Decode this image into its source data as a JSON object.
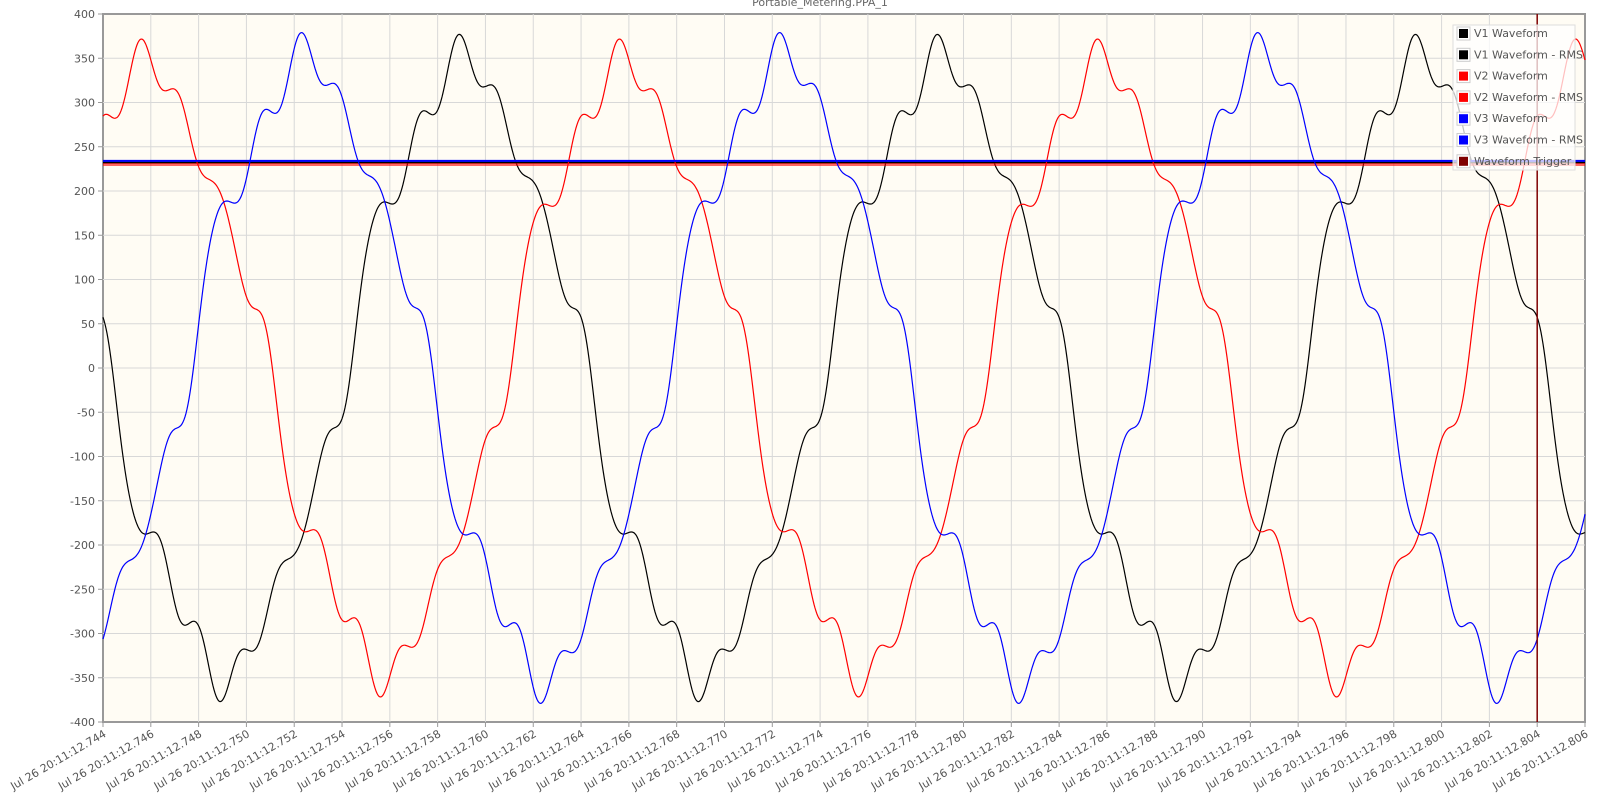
{
  "chart_data": {
    "type": "line",
    "title": "Portable_Metering.PPA_1",
    "xlabel": "",
    "ylabel": "",
    "ylim": [
      -400,
      400
    ],
    "yticks": [
      400,
      350,
      300,
      250,
      200,
      150,
      100,
      50,
      0,
      -50,
      -100,
      -150,
      -200,
      -250,
      -300,
      -350,
      -400
    ],
    "xticks": [
      "Jul 26 20:11:12.744",
      "Jul 26 20:11:12.746",
      "Jul 26 20:11:12.748",
      "Jul 26 20:11:12.750",
      "Jul 26 20:11:12.752",
      "Jul 26 20:11:12.754",
      "Jul 26 20:11:12.756",
      "Jul 26 20:11:12.758",
      "Jul 26 20:11:12.760",
      "Jul 26 20:11:12.762",
      "Jul 26 20:11:12.764",
      "Jul 26 20:11:12.766",
      "Jul 26 20:11:12.768",
      "Jul 26 20:11:12.770",
      "Jul 26 20:11:12.772",
      "Jul 26 20:11:12.774",
      "Jul 26 20:11:12.776",
      "Jul 26 20:11:12.778",
      "Jul 26 20:11:12.780",
      "Jul 26 20:11:12.782",
      "Jul 26 20:11:12.784",
      "Jul 26 20:11:12.786",
      "Jul 26 20:11:12.788",
      "Jul 26 20:11:12.790",
      "Jul 26 20:11:12.792",
      "Jul 26 20:11:12.794",
      "Jul 26 20:11:12.796",
      "Jul 26 20:11:12.798",
      "Jul 26 20:11:12.800",
      "Jul 26 20:11:12.802",
      "Jul 26 20:11:12.804",
      "Jul 26 20:11:12.806"
    ],
    "xlim_seconds": [
      12.744,
      12.806
    ],
    "grid": true,
    "legend_position": "top-right",
    "background": "#fffcf4",
    "series": [
      {
        "name": "V1 Waveform",
        "color": "#000000",
        "kind": "waveform",
        "peak": 363,
        "trough": -363,
        "peak_times": [
          12.7591,
          12.7791,
          12.7991
        ]
      },
      {
        "name": "V1 Waveform - RMS",
        "color": "#000000",
        "kind": "rms",
        "value": 232
      },
      {
        "name": "V2 Waveform",
        "color": "#ff0000",
        "kind": "waveform",
        "peak": 358,
        "trough": -358,
        "peak_times": [
          12.7458,
          12.7658,
          12.7858
        ]
      },
      {
        "name": "V2 Waveform - RMS",
        "color": "#ff0000",
        "kind": "rms",
        "value": 230
      },
      {
        "name": "V3 Waveform",
        "color": "#0000ff",
        "kind": "waveform",
        "peak": 365,
        "trough": -365,
        "peak_times": [
          12.7525,
          12.7725,
          12.7925
        ]
      },
      {
        "name": "V3 Waveform - RMS",
        "color": "#0000ff",
        "kind": "rms",
        "value": 234
      },
      {
        "name": "Waveform Trigger",
        "color": "#7f0000",
        "kind": "trigger",
        "time": 12.804
      }
    ]
  }
}
